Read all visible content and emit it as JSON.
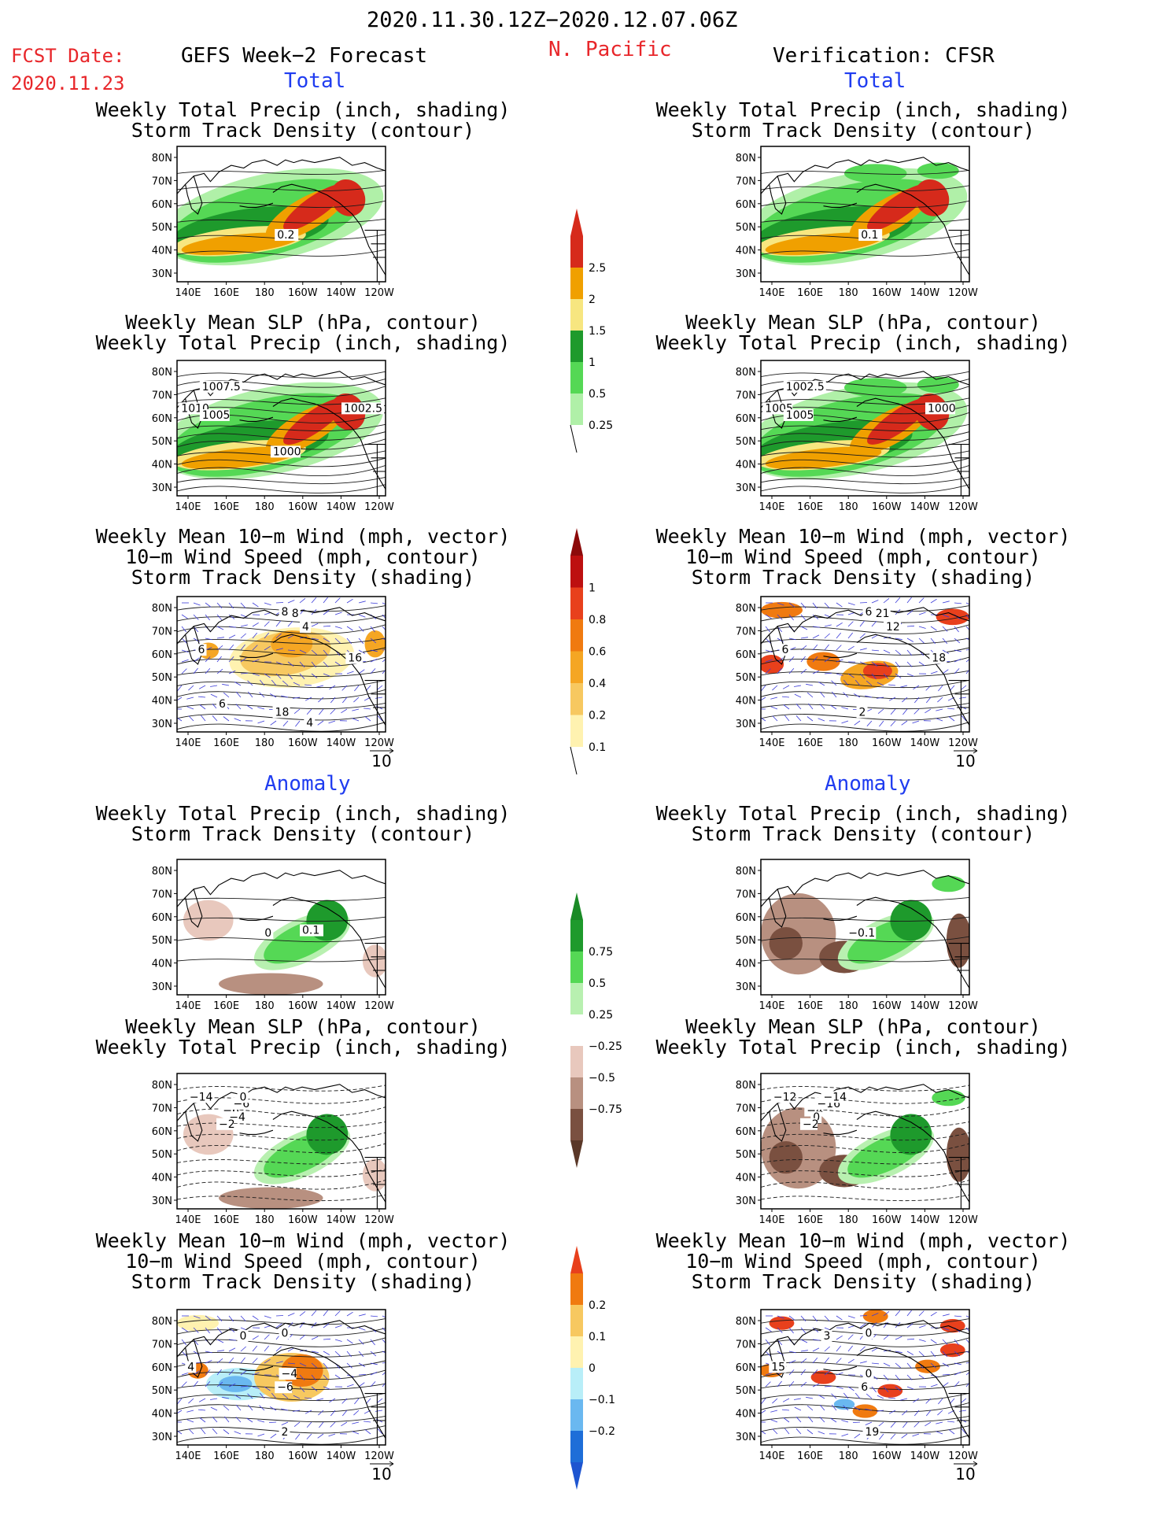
{
  "header": {
    "date_range": "2020.11.30.12Z−2020.12.07.06Z",
    "fcst_label": "FCST Date:",
    "fcst_date": "2020.11.23",
    "model_title": "GEFS Week−2 Forecast",
    "region": "N. Pacific",
    "verification": "Verification: CFSR"
  },
  "sections": {
    "total": "Total",
    "anomaly": "Anomaly"
  },
  "panel_titles": {
    "precip_storm": [
      "Weekly Total Precip (inch, shading)",
      "Storm Track Density (contour)"
    ],
    "slp_precip": [
      "Weekly Mean SLP (hPa, contour)",
      "Weekly Total Precip (inch, shading)"
    ],
    "wind_storm": [
      "Weekly Mean 10−m Wind (mph, vector)",
      "10−m Wind Speed (mph, contour)",
      "Storm Track Density (shading)"
    ]
  },
  "axes": {
    "lat_ticks": [
      "80N",
      "70N",
      "60N",
      "50N",
      "40N",
      "30N"
    ],
    "lon_ticks": [
      "140E",
      "160E",
      "180",
      "160W",
      "140W",
      "120W"
    ]
  },
  "vector_ref": "10",
  "colorbars": {
    "precip_total": {
      "labels": [
        "2.5",
        "2",
        "1.5",
        "1",
        "0.5",
        "0.25"
      ],
      "colors": [
        "#d62a1b",
        "#f0a000",
        "#f7e680",
        "#1e9a2c",
        "#55d855",
        "#b0f0a8"
      ],
      "top_color": "#d62a1b"
    },
    "storm_total": {
      "labels": [
        "1",
        "0.8",
        "0.6",
        "0.4",
        "0.2",
        "0.1"
      ],
      "colors": [
        "#bd1010",
        "#e8401c",
        "#f07a10",
        "#f5a623",
        "#f7c860",
        "#fff2b0"
      ],
      "top_color": "#8c0a0a"
    },
    "precip_anom": {
      "labels": [
        "0.75",
        "0.5",
        "0.25",
        "−0.25",
        "−0.5",
        "−0.75"
      ],
      "colors": [
        "#1e9a2c",
        "#55d855",
        "#b8f0b0",
        "#ffffff",
        "#e8c8bd",
        "#b89080",
        "#7a5040"
      ],
      "top_color": "#1a8a26",
      "bottom_color": "#5a3828"
    },
    "storm_anom": {
      "labels": [
        "0.2",
        "0.1",
        "0",
        "−0.1",
        "−0.2"
      ],
      "colors": [
        "#f07a10",
        "#f7c860",
        "#fff2b0",
        "#b8eef8",
        "#6ab8f0",
        "#1e6ed8"
      ],
      "top_color": "#e8401c",
      "bottom_color": "#1e55d0"
    }
  },
  "contour_labels": {
    "fc_total_precip": [
      "0.2"
    ],
    "ver_total_precip": [
      "0.1"
    ],
    "fc_total_slp": [
      "1007.5",
      "1010",
      "1005",
      "1002.5",
      "1000"
    ],
    "ver_total_slp": [
      "1002.5",
      "1005",
      "1005",
      "1000"
    ],
    "fc_total_wind": [
      "8",
      "6",
      "4",
      "16",
      "18",
      "8",
      "6",
      "4"
    ],
    "ver_total_wind": [
      "6",
      "6",
      "12",
      "18",
      "2",
      "21"
    ],
    "fc_anom_precip": [
      "0",
      "0.1"
    ],
    "ver_anom_precip": [
      "−0.1"
    ],
    "fc_anom_slp": [
      "−14",
      "−6",
      "−6",
      "0",
      "−4",
      "−2"
    ],
    "ver_anom_slp": [
      "−12",
      "−4",
      "−16",
      "−14",
      "0",
      "−2"
    ],
    "fc_anom_wind": [
      "0",
      "0",
      "−4",
      "−6",
      "4",
      "2"
    ],
    "ver_anom_wind": [
      "3",
      "0",
      "0",
      "6",
      "15",
      "19"
    ]
  }
}
